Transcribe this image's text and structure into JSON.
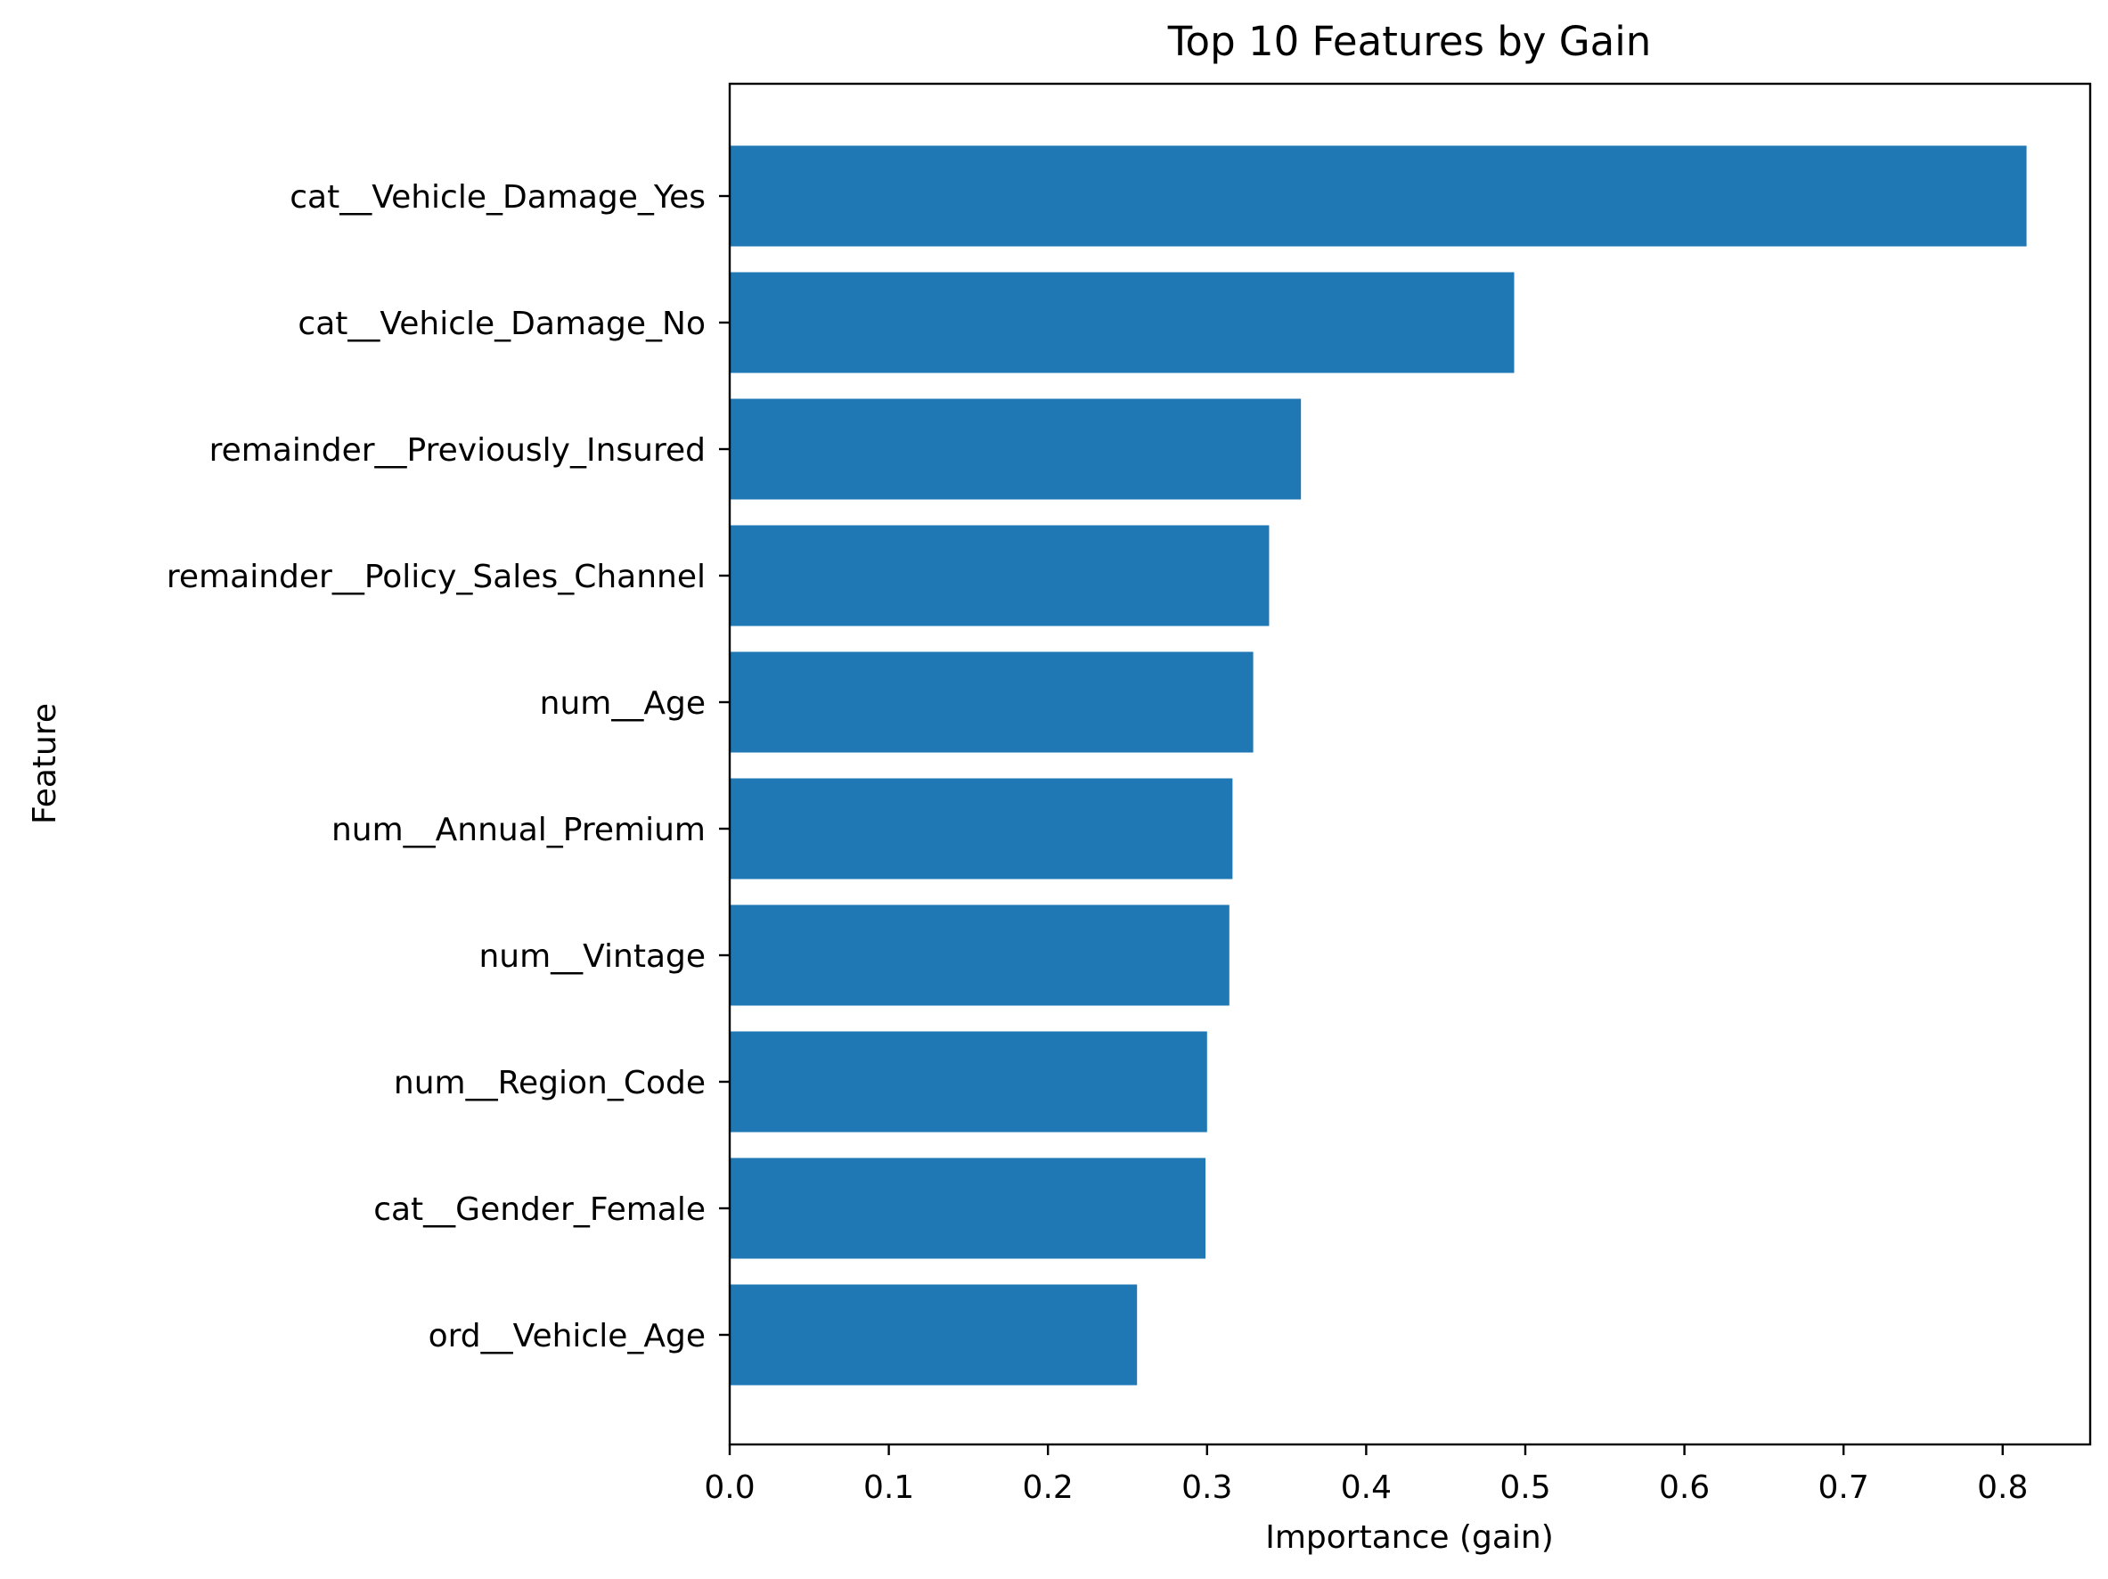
{
  "chart_data": {
    "type": "bar",
    "orientation": "horizontal",
    "title": "Top 10 Features by Gain",
    "xlabel": "Importance (gain)",
    "ylabel": "Feature",
    "categories": [
      "cat__Vehicle_Damage_Yes",
      "cat__Vehicle_Damage_No",
      "remainder__Previously_Insured",
      "remainder__Policy_Sales_Channel",
      "num__Age",
      "num__Annual_Premium",
      "num__Vintage",
      "num__Region_Code",
      "cat__Gender_Female",
      "ord__Vehicle_Age"
    ],
    "values": [
      0.815,
      0.493,
      0.359,
      0.339,
      0.329,
      0.316,
      0.314,
      0.3,
      0.299,
      0.256
    ],
    "xlim": [
      0.0,
      0.855
    ],
    "xticks": [
      0.0,
      0.1,
      0.2,
      0.3,
      0.4,
      0.5,
      0.6,
      0.7,
      0.8
    ],
    "xtick_labels": [
      "0.0",
      "0.1",
      "0.2",
      "0.3",
      "0.4",
      "0.5",
      "0.6",
      "0.7",
      "0.8"
    ],
    "grid": false,
    "legend": "none",
    "bar_color": "#1f77b4"
  }
}
